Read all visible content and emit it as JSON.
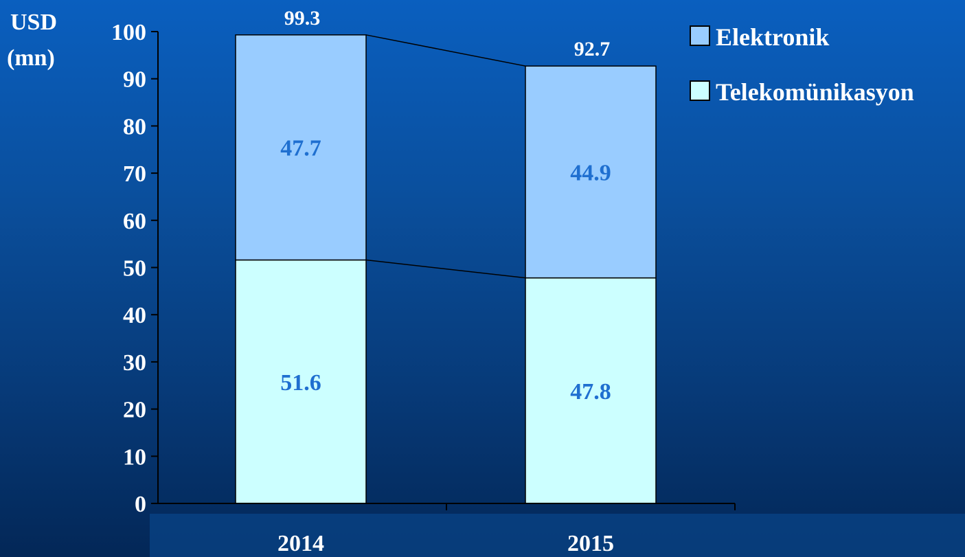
{
  "chart_data": {
    "type": "bar",
    "stacked": true,
    "categories": [
      "2014",
      "2015"
    ],
    "series": [
      {
        "name": "Telekomünikasyon",
        "values": [
          51.6,
          47.8
        ],
        "color": "#ccffff"
      },
      {
        "name": "Elektronik",
        "values": [
          47.7,
          44.9
        ],
        "color": "#99ccff"
      }
    ],
    "totals": [
      "99.3",
      "92.7"
    ],
    "segment_labels": [
      [
        "51.6",
        "47.8"
      ],
      [
        "47.7",
        "44.9"
      ]
    ],
    "ylabel_line1": "USD",
    "ylabel_line2": "(mn)",
    "ylim": [
      0,
      100
    ],
    "yticks": [
      0,
      10,
      20,
      30,
      40,
      50,
      60,
      70,
      80,
      90,
      100
    ],
    "legend_position": "top-right",
    "grid": false,
    "series_connector_lines": true,
    "colors": {
      "axis": "#000000",
      "tick_text": "#ffffff",
      "segment_label": "#1f6fd0"
    }
  }
}
